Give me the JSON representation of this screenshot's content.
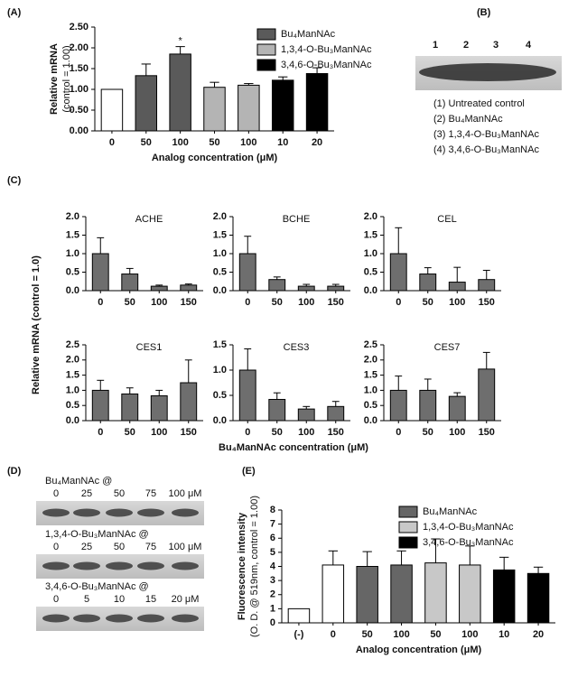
{
  "chart_data": [
    {
      "type": "bar",
      "categories": [
        "0",
        "50",
        "100",
        "50",
        "100",
        "10",
        "20"
      ],
      "values": [
        1.0,
        1.33,
        1.85,
        1.05,
        1.1,
        1.22,
        1.38
      ],
      "errors": [
        0,
        0.28,
        0.18,
        0.12,
        0.04,
        0.08,
        0.14
      ],
      "colors": [
        "#ffffff",
        "#5a5a5a",
        "#5a5a5a",
        "#b4b4b4",
        "#b4b4b4",
        "#000000",
        "#000000"
      ],
      "ylim": [
        0,
        2.5
      ],
      "yticks": [
        {
          "value": 0,
          "label": "0.00"
        },
        {
          "value": 0.5,
          "label": "0.50"
        },
        {
          "value": 1,
          "label": "1.00"
        },
        {
          "value": 1.5,
          "label": "1.50"
        },
        {
          "value": 2,
          "label": "2.00"
        },
        {
          "value": 2.5,
          "label": "2.50"
        }
      ],
      "y_label": [
        "Relative mRNA",
        "(control = 1.00)"
      ],
      "x_label": "Analog concentration (μM)",
      "legend": [
        {
          "name": "Bu₄ManNAc",
          "color": "#5a5a5a"
        },
        {
          "name": "1,3,4-O-Bu₃ManNAc",
          "color": "#b4b4b4"
        },
        {
          "name": "3,4,6-O-Bu₃ManNAc",
          "color": "#000000"
        }
      ],
      "annotation": "*"
    },
    {
      "type": "bar",
      "title": "ACHE",
      "categories": [
        "0",
        "50",
        "100",
        "150"
      ],
      "values": [
        1.0,
        0.45,
        0.12,
        0.15
      ],
      "errors": [
        0.43,
        0.15,
        0.03,
        0.03
      ],
      "colors": [
        "#6e6e6e",
        "#6e6e6e",
        "#6e6e6e",
        "#6e6e6e"
      ],
      "ylim": [
        0,
        2.0
      ],
      "yticks": [
        {
          "value": 0,
          "label": "0.0"
        },
        0.5,
        {
          "value": 1,
          "label": "1.0"
        },
        1.5,
        {
          "value": 2,
          "label": "2.0"
        }
      ]
    },
    {
      "type": "bar",
      "title": "BCHE",
      "categories": [
        "0",
        "50",
        "100",
        "150"
      ],
      "values": [
        1.0,
        0.3,
        0.12,
        0.12
      ],
      "errors": [
        0.47,
        0.07,
        0.05,
        0.05
      ],
      "colors": [
        "#6e6e6e",
        "#6e6e6e",
        "#6e6e6e",
        "#6e6e6e"
      ],
      "ylim": [
        0,
        2.0
      ],
      "yticks": [
        {
          "value": 0,
          "label": "0.0"
        },
        0.5,
        {
          "value": 1,
          "label": "1.0"
        },
        1.5,
        {
          "value": 2,
          "label": "2.0"
        }
      ]
    },
    {
      "type": "bar",
      "title": "CEL",
      "categories": [
        "0",
        "50",
        "100",
        "150"
      ],
      "values": [
        1.0,
        0.45,
        0.23,
        0.3
      ],
      "errors": [
        0.7,
        0.17,
        0.4,
        0.25
      ],
      "colors": [
        "#6e6e6e",
        "#6e6e6e",
        "#6e6e6e",
        "#6e6e6e"
      ],
      "ylim": [
        0,
        2.0
      ],
      "yticks": [
        {
          "value": 0,
          "label": "0.0"
        },
        0.5,
        {
          "value": 1,
          "label": "1.0"
        },
        1.5,
        {
          "value": 2,
          "label": "2.0"
        }
      ]
    },
    {
      "type": "bar",
      "title": "CES1",
      "categories": [
        "0",
        "50",
        "100",
        "150"
      ],
      "values": [
        1.0,
        0.88,
        0.82,
        1.25
      ],
      "errors": [
        0.33,
        0.2,
        0.18,
        0.75
      ],
      "colors": [
        "#6e6e6e",
        "#6e6e6e",
        "#6e6e6e",
        "#6e6e6e"
      ],
      "ylim": [
        0,
        2.5
      ],
      "yticks": [
        {
          "value": 0,
          "label": "0.0"
        },
        0.5,
        {
          "value": 1,
          "label": "1.0"
        },
        1.5,
        {
          "value": 2,
          "label": "2.0"
        },
        2.5
      ]
    },
    {
      "type": "bar",
      "title": "CES3",
      "categories": [
        "0",
        "50",
        "100",
        "150"
      ],
      "values": [
        1.0,
        0.42,
        0.23,
        0.28
      ],
      "errors": [
        0.42,
        0.13,
        0.05,
        0.1
      ],
      "colors": [
        "#6e6e6e",
        "#6e6e6e",
        "#6e6e6e",
        "#6e6e6e"
      ],
      "ylim": [
        0,
        1.5
      ],
      "yticks": [
        {
          "value": 0,
          "label": "0.0"
        },
        0.5,
        {
          "value": 1,
          "label": "1.0"
        },
        1.5
      ]
    },
    {
      "type": "bar",
      "title": "CES7",
      "categories": [
        "0",
        "50",
        "100",
        "150"
      ],
      "values": [
        1.0,
        1.0,
        0.8,
        1.7
      ],
      "errors": [
        0.47,
        0.37,
        0.12,
        0.55
      ],
      "colors": [
        "#6e6e6e",
        "#6e6e6e",
        "#6e6e6e",
        "#6e6e6e"
      ],
      "ylim": [
        0,
        2.5
      ],
      "yticks": [
        {
          "value": 0,
          "label": "0.0"
        },
        0.5,
        {
          "value": 1,
          "label": "1.0"
        },
        1.5,
        {
          "value": 2,
          "label": "2.0"
        },
        2.5
      ]
    },
    {
      "type": "bar",
      "categories": [
        "(-)",
        "0",
        "50",
        "100",
        "50",
        "100",
        "10",
        "20"
      ],
      "values": [
        1.0,
        4.1,
        4.0,
        4.1,
        4.25,
        4.1,
        3.75,
        3.5
      ],
      "errors": [
        0,
        1.0,
        1.05,
        1.0,
        1.7,
        1.35,
        0.9,
        0.45
      ],
      "colors": [
        "#ffffff",
        "#ffffff",
        "#666666",
        "#666666",
        "#c8c8c8",
        "#c8c8c8",
        "#000000",
        "#000000"
      ],
      "ylim": [
        0,
        8
      ],
      "yticks": [
        0,
        1,
        2,
        3,
        4,
        5,
        6,
        7,
        8
      ],
      "y_label": [
        "Fluorescence intensity",
        "(O. D. @ 519nm, control = 1.00)"
      ],
      "x_label": "Analog concentration (μM)",
      "legend": [
        {
          "name": "Bu₄ManNAc",
          "color": "#666666"
        },
        {
          "name": "1,3,4-O-Bu₃ManNAc",
          "color": "#c8c8c8"
        },
        {
          "name": "3,4,6-O-Bu₃ManNAc",
          "color": "#000000"
        }
      ]
    }
  ],
  "panel_labels": [
    "(A)",
    "(B)",
    "(C)",
    "(D)",
    "(E)"
  ],
  "panel_b": {
    "lanes": [
      "1",
      "2",
      "3",
      "4"
    ],
    "legend": [
      "(1) Untreated control",
      "(2) Bu₄ManNAc",
      "(3) 1,3,4-O-Bu₃ManNAc",
      "(4) 3,4,6-O-Bu₃ManNAc"
    ]
  },
  "panel_c": {
    "y_label": "Relative mRNA (control = 1.0)",
    "x_label": "Bu₄ManNAc concentration (μM)"
  },
  "panel_d": {
    "blots": [
      {
        "label": "Bu₄ManNAc @",
        "lanes": [
          "0",
          "25",
          "50",
          "75",
          "100 μM"
        ]
      },
      {
        "label": "1,3,4-O-Bu₃ManNAc @",
        "lanes": [
          "0",
          "25",
          "50",
          "75",
          "100 μM"
        ]
      },
      {
        "label": "3,4,6-O-Bu₃ManNAc @",
        "lanes": [
          "0",
          "5",
          "10",
          "15",
          "20 μM"
        ]
      }
    ]
  }
}
